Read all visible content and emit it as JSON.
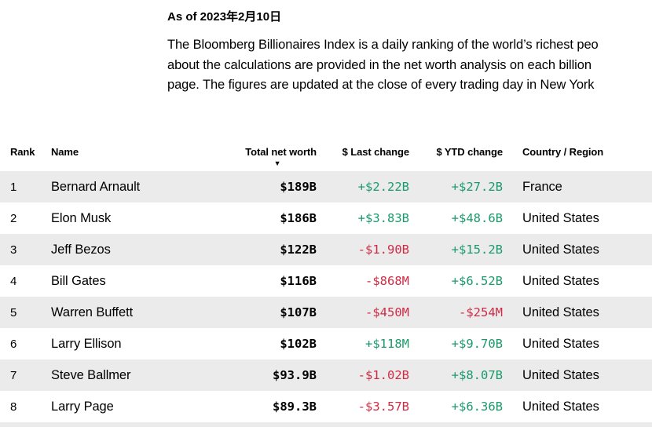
{
  "page": {
    "as_of": "As of 2023年2月10日",
    "description_lines": [
      "The Bloomberg Billionaires Index is a daily ranking of the world’s richest peo",
      "about the calculations are provided in the net worth analysis on each billion",
      "page. The figures are updated at the close of every trading day in New York"
    ]
  },
  "table": {
    "columns": [
      {
        "key": "rank",
        "label": "Rank"
      },
      {
        "key": "name",
        "label": "Name"
      },
      {
        "key": "net_worth",
        "label": "Total net worth",
        "sorted": "descending"
      },
      {
        "key": "last_change",
        "label": "$ Last change"
      },
      {
        "key": "ytd_change",
        "label": "$ YTD change"
      },
      {
        "key": "country",
        "label": "Country / Region"
      }
    ],
    "sort_icon": "▼",
    "rows": [
      {
        "rank": "1",
        "name": "Bernard Arnault",
        "total_net_worth": "$189B",
        "last_change": "+$2.22B",
        "ytd_change": "+$27.2B",
        "country": "France"
      },
      {
        "rank": "2",
        "name": "Elon Musk",
        "total_net_worth": "$186B",
        "last_change": "+$3.83B",
        "ytd_change": "+$48.6B",
        "country": "United States"
      },
      {
        "rank": "3",
        "name": "Jeff Bezos",
        "total_net_worth": "$122B",
        "last_change": "-$1.90B",
        "ytd_change": "+$15.2B",
        "country": "United States"
      },
      {
        "rank": "4",
        "name": "Bill Gates",
        "total_net_worth": "$116B",
        "last_change": "-$868M",
        "ytd_change": "+$6.52B",
        "country": "United States"
      },
      {
        "rank": "5",
        "name": "Warren Buffett",
        "total_net_worth": "$107B",
        "last_change": "-$450M",
        "ytd_change": "-$254M",
        "country": "United States"
      },
      {
        "rank": "6",
        "name": "Larry Ellison",
        "total_net_worth": "$102B",
        "last_change": "+$118M",
        "ytd_change": "+$9.70B",
        "country": "United States"
      },
      {
        "rank": "7",
        "name": "Steve Ballmer",
        "total_net_worth": "$93.9B",
        "last_change": "-$1.02B",
        "ytd_change": "+$8.07B",
        "country": "United States"
      },
      {
        "rank": "8",
        "name": "Larry Page",
        "total_net_worth": "$89.3B",
        "last_change": "-$3.57B",
        "ytd_change": "+$6.36B",
        "country": "United States"
      }
    ]
  },
  "colors": {
    "positive": "#1b9a6c",
    "negative": "#d02b45",
    "row_alt": "#ebebeb",
    "text": "#000000"
  }
}
